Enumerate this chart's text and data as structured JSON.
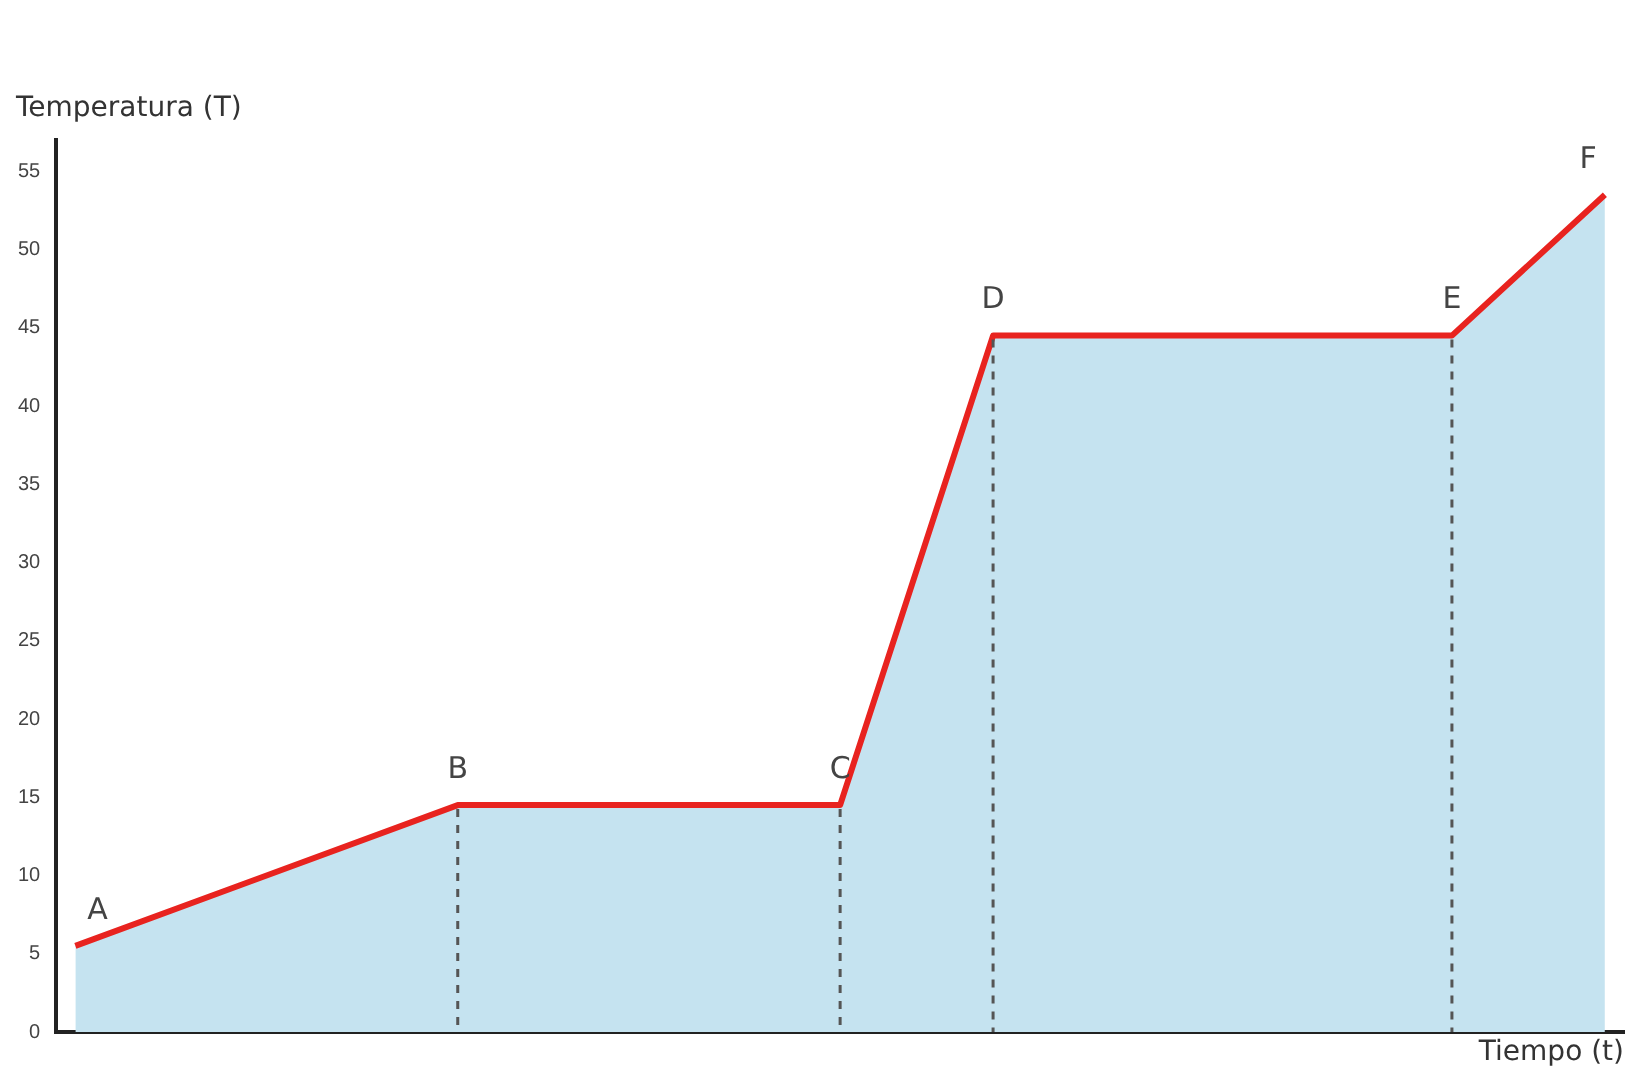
{
  "chart_data": {
    "type": "area",
    "ylabel": "Temperatura (T)",
    "xlabel": "Tiempo (t)",
    "categories": [
      null,
      null,
      null,
      null,
      null,
      null,
      null,
      null,
      null,
      null,
      null,
      null,
      null,
      null,
      null,
      null,
      null,
      null,
      null,
      null,
      null,
      null,
      null,
      null,
      null,
      null,
      null,
      null,
      null,
      null,
      null,
      null,
      null,
      null,
      null,
      null,
      null,
      null,
      null,
      null,
      null
    ],
    "series": [
      {
        "color": "#c5e3f0",
        "values": [
          5.5,
          null,
          null,
          null,
          null,
          null,
          null,
          null,
          null,
          null,
          14.5,
          null,
          null,
          null,
          null,
          null,
          null,
          null,
          null,
          null,
          14.5,
          null,
          null,
          null,
          44.5,
          null,
          null,
          null,
          null,
          null,
          null,
          null,
          null,
          null,
          null,
          null,
          44.5,
          null,
          null,
          null,
          53.5
        ],
        "value_labels": [
          "A",
          null,
          null,
          null,
          null,
          null,
          null,
          null,
          null,
          null,
          "B",
          null,
          null,
          null,
          null,
          null,
          null,
          null,
          null,
          null,
          "C",
          null,
          null,
          null,
          "D",
          null,
          null,
          null,
          null,
          null,
          null,
          null,
          null,
          null,
          null,
          null,
          "E",
          null,
          null,
          null,
          "F"
        ]
      }
    ],
    "ylim": [
      0,
      57
    ],
    "yticks": [
      0,
      5,
      10,
      15,
      20,
      25,
      30,
      35,
      40,
      45,
      50,
      55
    ],
    "tick_labels": "y",
    "grid": false,
    "legend": false,
    "marker": "none",
    "line_style": "solid"
  }
}
